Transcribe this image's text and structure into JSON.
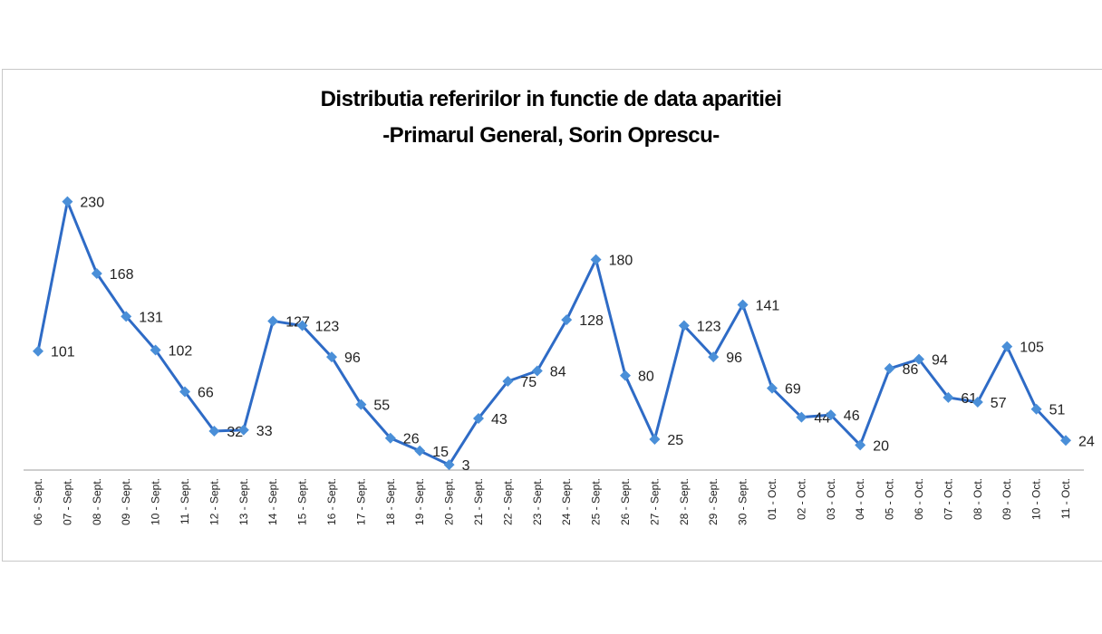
{
  "chart_data": {
    "type": "line",
    "title": "Distributia referirilor in functie de data aparitiei",
    "subtitle": "-Primarul General, Sorin Oprescu-",
    "categories": [
      "06 - Sept.",
      "07 - Sept.",
      "08 - Sept.",
      "09 - Sept.",
      "10 - Sept.",
      "11 - Sept.",
      "12 - Sept.",
      "13 - Sept.",
      "14 - Sept.",
      "15 - Sept.",
      "16 - Sept.",
      "17 - Sept.",
      "18 - Sept.",
      "19 - Sept.",
      "20 - Sept.",
      "21 - Sept.",
      "22 - Sept.",
      "23 - Sept.",
      "24 - Sept.",
      "25 - Sept.",
      "26 - Sept.",
      "27 - Sept.",
      "28 - Sept.",
      "29 - Sept.",
      "30 - Sept.",
      "01 - Oct.",
      "02 - Oct.",
      "03 - Oct.",
      "04 - Oct.",
      "05 - Oct.",
      "06 - Oct.",
      "07 - Oct.",
      "08 - Oct.",
      "09 - Oct.",
      "10 - Oct.",
      "11 - Oct."
    ],
    "values": [
      101,
      230,
      168,
      131,
      102,
      66,
      32,
      33,
      127,
      123,
      96,
      55,
      26,
      15,
      3,
      43,
      75,
      84,
      128,
      180,
      80,
      25,
      123,
      96,
      141,
      69,
      44,
      46,
      20,
      86,
      94,
      61,
      57,
      105,
      51,
      24
    ],
    "ylim": [
      0,
      250
    ],
    "grid": false,
    "legend": "none",
    "color": "#2e6bc6",
    "marker_color": "#4a8fd8"
  }
}
